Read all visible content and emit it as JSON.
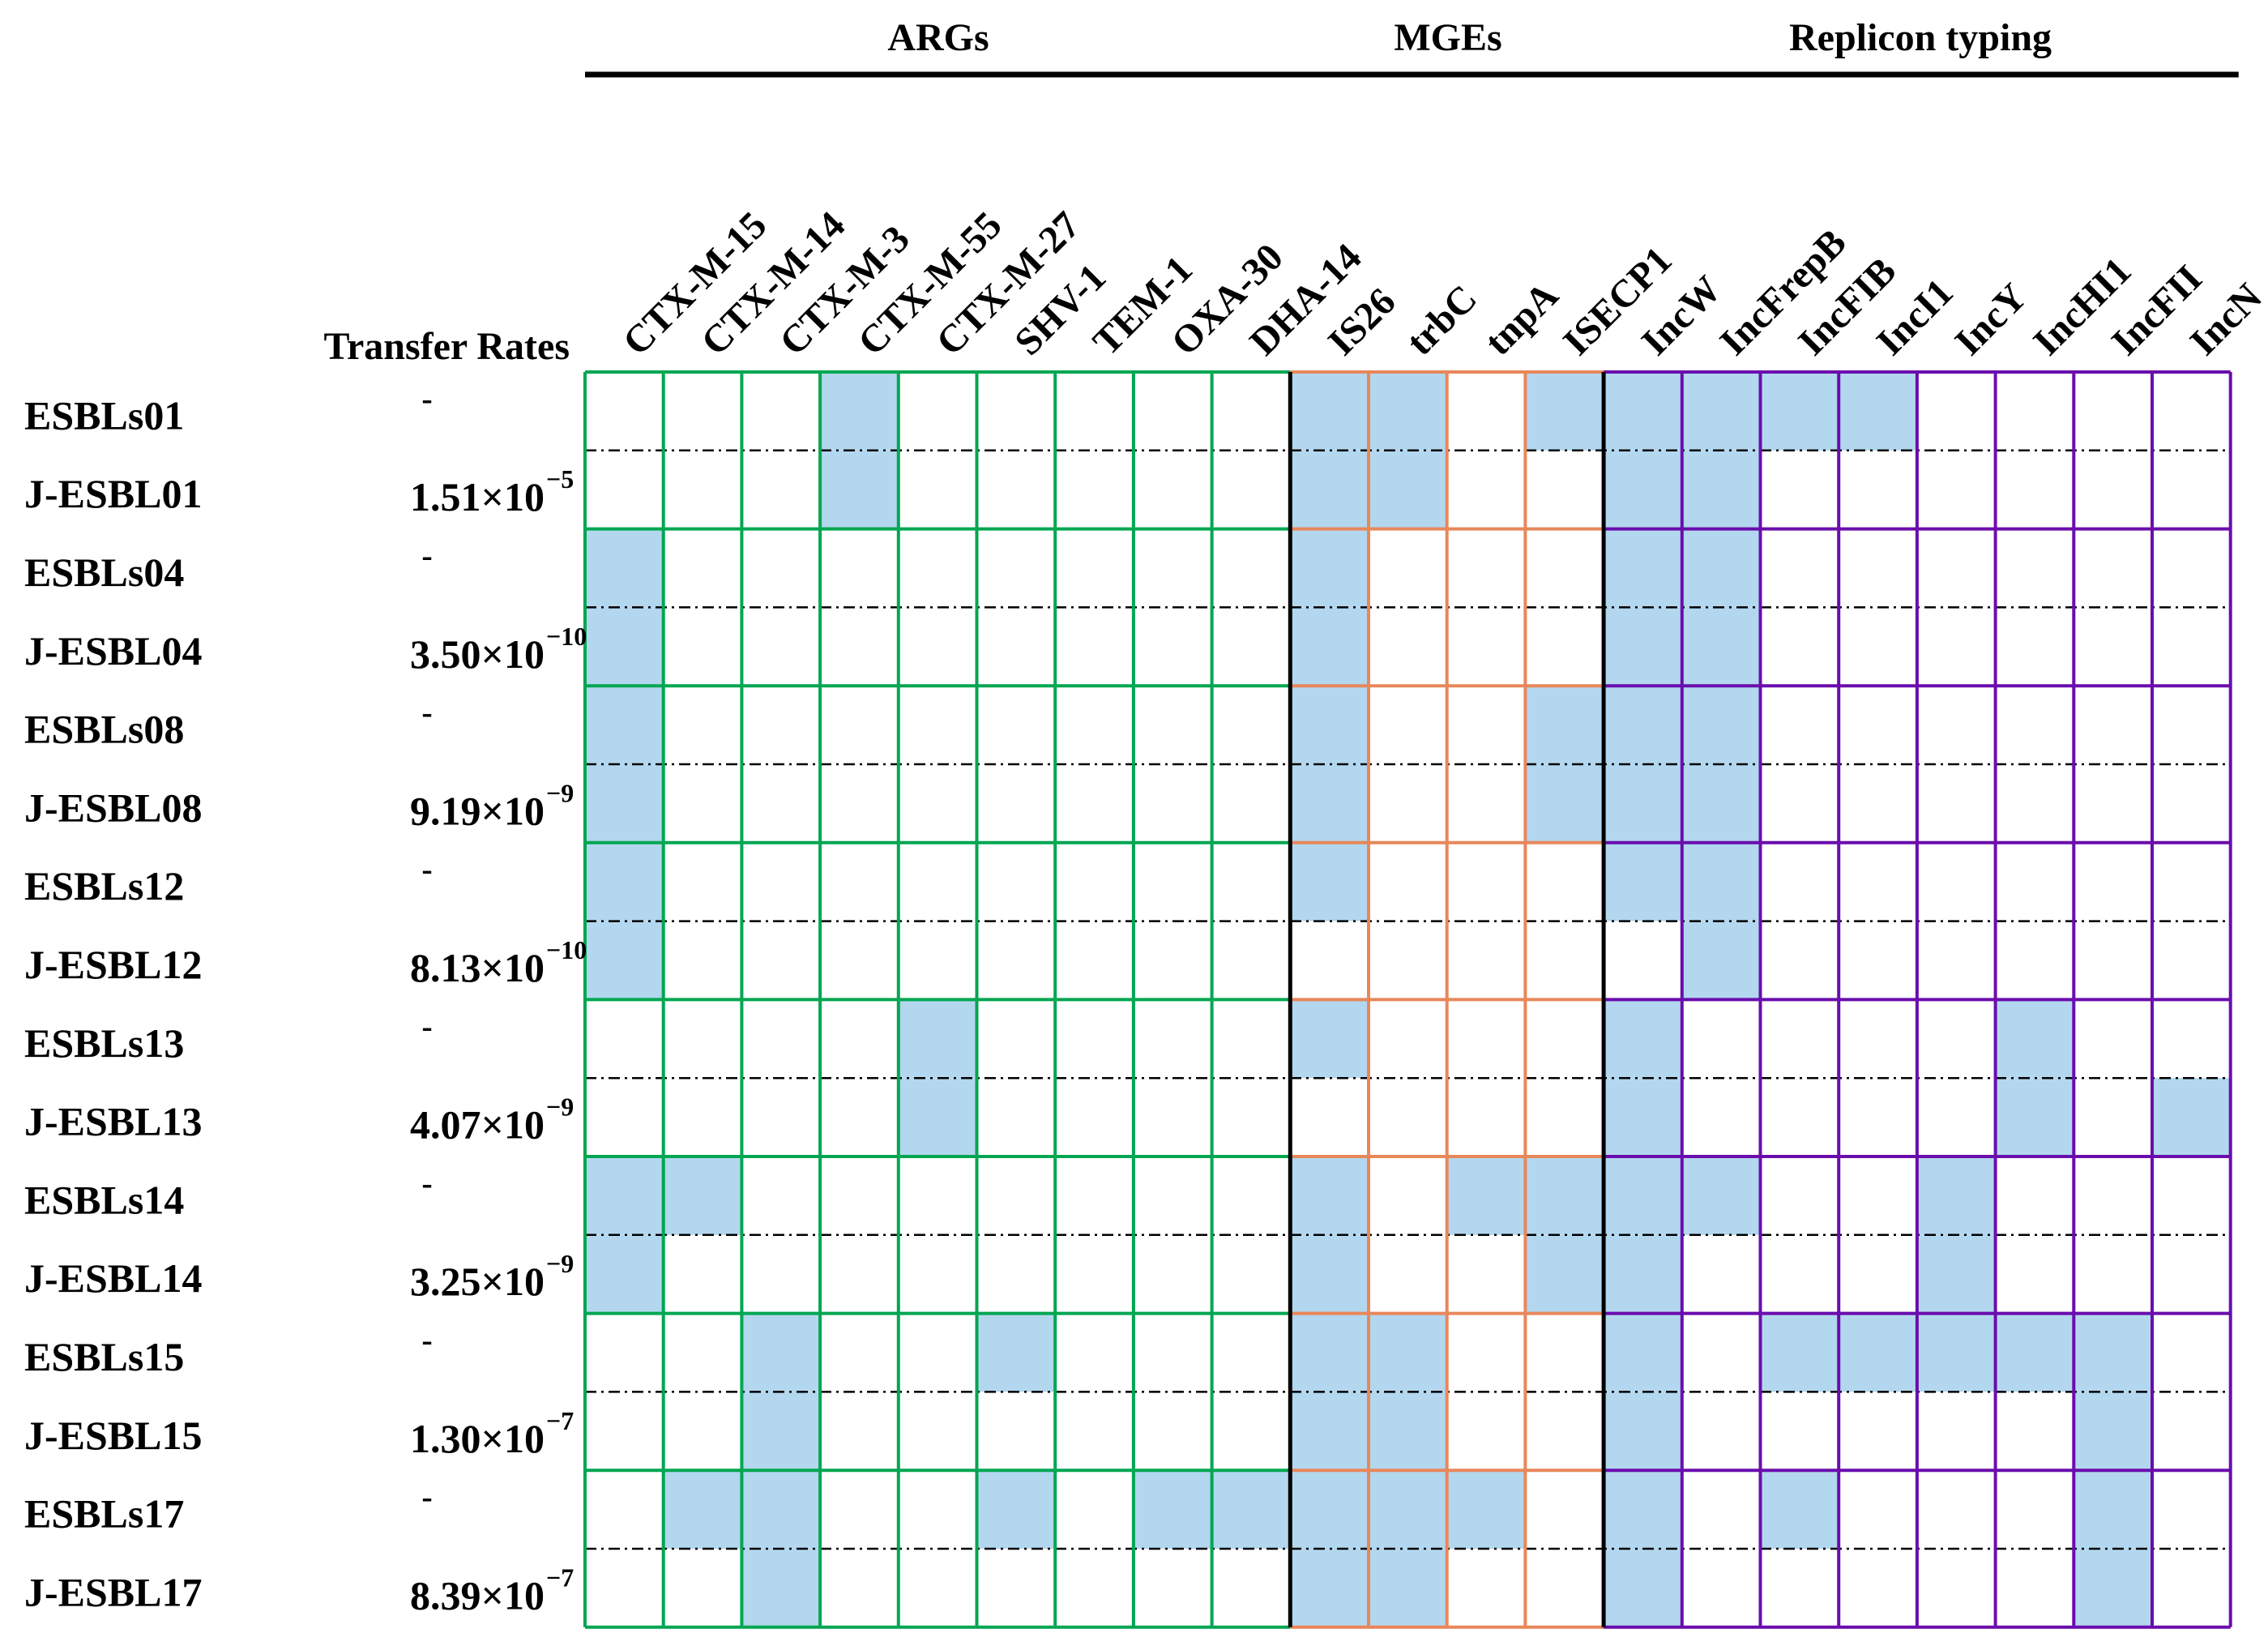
{
  "chart_data": {
    "type": "table",
    "groups": [
      {
        "name": "ARGs",
        "color": "#00a651",
        "columns": [
          "CTX-M-15",
          "CTX-M-14",
          "CTX-M-3",
          "CTX-M-55",
          "CTX-M-27",
          "SHV-1",
          "TEM-1",
          "OXA-30",
          "DHA-14"
        ]
      },
      {
        "name": "MGEs",
        "color": "#e8875a",
        "columns": [
          "IS26",
          "trbC",
          "tnpA",
          "ISECP1"
        ]
      },
      {
        "name": "Replicon typing",
        "color": "#6a0dad",
        "columns": [
          "IncW",
          "IncFrepB",
          "IncFIB",
          "IncI1",
          "IncY",
          "IncHI1",
          "IncFII",
          "IncN"
        ]
      }
    ],
    "rate_header": "Transfer Rates",
    "fill_color": "#b3d7ee",
    "rows": [
      {
        "label": "ESBLs01",
        "rate_base": "-",
        "rate_exp": "",
        "present": [
          0,
          0,
          0,
          1,
          0,
          0,
          0,
          0,
          0,
          1,
          1,
          0,
          1,
          1,
          1,
          1,
          1,
          0,
          0,
          0,
          0
        ]
      },
      {
        "label": "J-ESBL01",
        "rate_base": "1.51×10",
        "rate_exp": "−5",
        "present": [
          0,
          0,
          0,
          1,
          0,
          0,
          0,
          0,
          0,
          1,
          1,
          0,
          0,
          1,
          1,
          0,
          0,
          0,
          0,
          0,
          0
        ]
      },
      {
        "label": "ESBLs04",
        "rate_base": "-",
        "rate_exp": "",
        "present": [
          1,
          0,
          0,
          0,
          0,
          0,
          0,
          0,
          0,
          1,
          0,
          0,
          0,
          1,
          1,
          0,
          0,
          0,
          0,
          0,
          0
        ]
      },
      {
        "label": "J-ESBL04",
        "rate_base": "3.50×10",
        "rate_exp": "−10",
        "present": [
          1,
          0,
          0,
          0,
          0,
          0,
          0,
          0,
          0,
          1,
          0,
          0,
          0,
          1,
          1,
          0,
          0,
          0,
          0,
          0,
          0
        ]
      },
      {
        "label": "ESBLs08",
        "rate_base": "-",
        "rate_exp": "",
        "present": [
          1,
          0,
          0,
          0,
          0,
          0,
          0,
          0,
          0,
          1,
          0,
          0,
          1,
          1,
          1,
          0,
          0,
          0,
          0,
          0,
          0
        ]
      },
      {
        "label": "J-ESBL08",
        "rate_base": "9.19×10",
        "rate_exp": "−9",
        "present": [
          1,
          0,
          0,
          0,
          0,
          0,
          0,
          0,
          0,
          1,
          0,
          0,
          1,
          1,
          1,
          0,
          0,
          0,
          0,
          0,
          0
        ]
      },
      {
        "label": "ESBLs12",
        "rate_base": "-",
        "rate_exp": "",
        "present": [
          1,
          0,
          0,
          0,
          0,
          0,
          0,
          0,
          0,
          1,
          0,
          0,
          0,
          1,
          1,
          0,
          0,
          0,
          0,
          0,
          0
        ]
      },
      {
        "label": "J-ESBL12",
        "rate_base": "8.13×10",
        "rate_exp": "−10",
        "present": [
          1,
          0,
          0,
          0,
          0,
          0,
          0,
          0,
          0,
          0,
          0,
          0,
          0,
          0,
          1,
          0,
          0,
          0,
          0,
          0,
          0
        ]
      },
      {
        "label": "ESBLs13",
        "rate_base": "-",
        "rate_exp": "",
        "present": [
          0,
          0,
          0,
          0,
          1,
          0,
          0,
          0,
          0,
          1,
          0,
          0,
          0,
          1,
          0,
          0,
          0,
          0,
          1,
          0,
          0
        ]
      },
      {
        "label": "J-ESBL13",
        "rate_base": "4.07×10",
        "rate_exp": "−9",
        "present": [
          0,
          0,
          0,
          0,
          1,
          0,
          0,
          0,
          0,
          0,
          0,
          0,
          0,
          1,
          0,
          0,
          0,
          0,
          1,
          0,
          1
        ]
      },
      {
        "label": "ESBLs14",
        "rate_base": "-",
        "rate_exp": "",
        "present": [
          1,
          1,
          0,
          0,
          0,
          0,
          0,
          0,
          0,
          1,
          0,
          1,
          1,
          1,
          1,
          0,
          0,
          1,
          0,
          0,
          0
        ]
      },
      {
        "label": "J-ESBL14",
        "rate_base": "3.25×10",
        "rate_exp": "−9",
        "present": [
          1,
          0,
          0,
          0,
          0,
          0,
          0,
          0,
          0,
          1,
          0,
          0,
          1,
          1,
          0,
          0,
          0,
          1,
          0,
          0,
          0
        ]
      },
      {
        "label": "ESBLs15",
        "rate_base": "-",
        "rate_exp": "",
        "present": [
          0,
          0,
          1,
          0,
          0,
          1,
          0,
          0,
          0,
          1,
          1,
          0,
          0,
          1,
          0,
          1,
          1,
          1,
          1,
          1,
          0
        ]
      },
      {
        "label": "J-ESBL15",
        "rate_base": "1.30×10",
        "rate_exp": "−7",
        "present": [
          0,
          0,
          1,
          0,
          0,
          0,
          0,
          0,
          0,
          1,
          1,
          0,
          0,
          1,
          0,
          0,
          0,
          0,
          0,
          1,
          0
        ]
      },
      {
        "label": "ESBLs17",
        "rate_base": "-",
        "rate_exp": "",
        "present": [
          0,
          1,
          1,
          0,
          0,
          1,
          0,
          1,
          1,
          1,
          1,
          1,
          0,
          1,
          0,
          1,
          0,
          0,
          0,
          1,
          0
        ]
      },
      {
        "label": "J-ESBL17",
        "rate_base": "8.39×10",
        "rate_exp": "−7",
        "present": [
          0,
          0,
          1,
          0,
          0,
          0,
          0,
          0,
          0,
          1,
          1,
          0,
          0,
          1,
          0,
          0,
          0,
          0,
          0,
          1,
          0
        ]
      }
    ]
  }
}
